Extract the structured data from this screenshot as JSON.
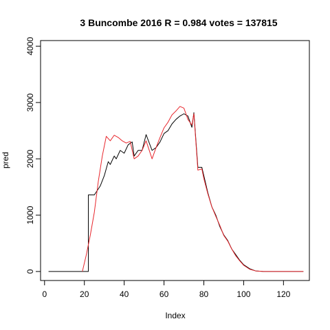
{
  "chart_data": {
    "type": "line",
    "title": "3 Buncombe 2016 R = 0.984 votes = 137815",
    "xlabel": "Index",
    "ylabel": "pred",
    "xlim": [
      -2,
      133
    ],
    "ylim": [
      -160,
      4100
    ],
    "x_ticks": [
      0,
      20,
      40,
      60,
      80,
      100,
      120
    ],
    "y_ticks": [
      0,
      1000,
      2000,
      3000,
      4000
    ],
    "grid": false,
    "series": [
      {
        "color": "#000000",
        "points": [
          [
            2,
            0
          ],
          [
            22,
            0
          ],
          [
            22,
            1360
          ],
          [
            25,
            1360
          ],
          [
            28,
            1520
          ],
          [
            30,
            1700
          ],
          [
            32,
            1950
          ],
          [
            33,
            1900
          ],
          [
            35,
            2050
          ],
          [
            36,
            2000
          ],
          [
            38,
            2150
          ],
          [
            40,
            2100
          ],
          [
            42,
            2250
          ],
          [
            44,
            2300
          ],
          [
            45,
            2050
          ],
          [
            47,
            2150
          ],
          [
            49,
            2150
          ],
          [
            51,
            2430
          ],
          [
            54,
            2150
          ],
          [
            56,
            2200
          ],
          [
            58,
            2300
          ],
          [
            60,
            2450
          ],
          [
            62,
            2500
          ],
          [
            64,
            2620
          ],
          [
            66,
            2700
          ],
          [
            68,
            2760
          ],
          [
            70,
            2800
          ],
          [
            72,
            2760
          ],
          [
            74,
            2560
          ],
          [
            75,
            2820
          ],
          [
            77,
            1850
          ],
          [
            79,
            1850
          ],
          [
            80,
            1700
          ],
          [
            82,
            1400
          ],
          [
            84,
            1150
          ],
          [
            86,
            1000
          ],
          [
            88,
            800
          ],
          [
            90,
            650
          ],
          [
            92,
            550
          ],
          [
            94,
            400
          ],
          [
            96,
            300
          ],
          [
            98,
            200
          ],
          [
            100,
            120
          ],
          [
            103,
            50
          ],
          [
            106,
            10
          ],
          [
            110,
            0
          ],
          [
            130,
            0
          ]
        ]
      },
      {
        "color": "#e8262c",
        "points": [
          [
            19,
            0
          ],
          [
            21,
            300
          ],
          [
            23,
            650
          ],
          [
            25,
            1050
          ],
          [
            27,
            1600
          ],
          [
            29,
            2050
          ],
          [
            31,
            2400
          ],
          [
            33,
            2320
          ],
          [
            35,
            2420
          ],
          [
            37,
            2380
          ],
          [
            39,
            2320
          ],
          [
            41,
            2280
          ],
          [
            43,
            2310
          ],
          [
            45,
            2000
          ],
          [
            47,
            2050
          ],
          [
            49,
            2150
          ],
          [
            51,
            2320
          ],
          [
            54,
            2000
          ],
          [
            56,
            2200
          ],
          [
            58,
            2380
          ],
          [
            60,
            2550
          ],
          [
            62,
            2650
          ],
          [
            64,
            2780
          ],
          [
            66,
            2850
          ],
          [
            68,
            2930
          ],
          [
            70,
            2900
          ],
          [
            72,
            2700
          ],
          [
            74,
            2600
          ],
          [
            75,
            2800
          ],
          [
            77,
            1800
          ],
          [
            79,
            1820
          ],
          [
            80,
            1650
          ],
          [
            82,
            1380
          ],
          [
            84,
            1150
          ],
          [
            86,
            980
          ],
          [
            88,
            820
          ],
          [
            90,
            640
          ],
          [
            92,
            540
          ],
          [
            94,
            400
          ],
          [
            96,
            280
          ],
          [
            98,
            190
          ],
          [
            100,
            110
          ],
          [
            103,
            40
          ],
          [
            106,
            10
          ],
          [
            110,
            0
          ],
          [
            130,
            0
          ]
        ]
      }
    ]
  }
}
